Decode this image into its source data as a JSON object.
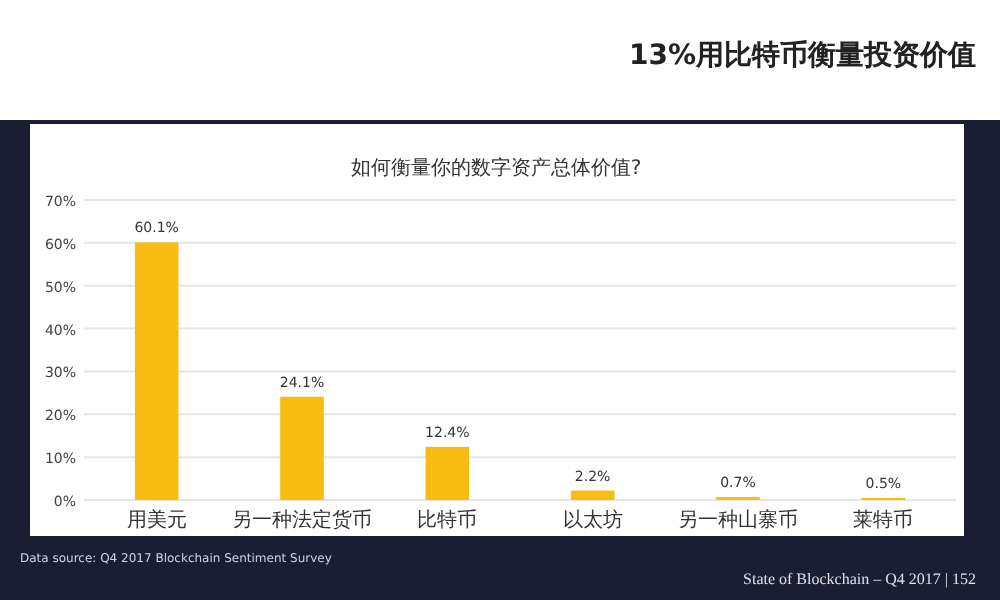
{
  "chart_data": {
    "type": "bar",
    "title": "13%用比特币衡量投资价值",
    "subtitle": "如何衡量你的数字资产总体价值?",
    "categories": [
      "用美元",
      "另一种法定货币",
      "比特币",
      "以太坊",
      "另一种山寨币",
      "莱特币"
    ],
    "values": [
      60.1,
      24.1,
      12.4,
      2.2,
      0.7,
      0.5
    ],
    "value_labels": [
      "60.1%",
      "24.1%",
      "12.4%",
      "2.2%",
      "0.7%",
      "0.5%"
    ],
    "color": "#f9bd12",
    "ylim": [
      0,
      70
    ],
    "yticks": [
      {
        "value": 0,
        "label": "0%"
      },
      {
        "value": 10,
        "label": "10%"
      },
      {
        "value": 20,
        "label": "20%"
      },
      {
        "value": 30,
        "label": "30%"
      },
      {
        "value": 40,
        "label": "40%"
      },
      {
        "value": 50,
        "label": "50%"
      },
      {
        "value": 60,
        "label": "60%"
      },
      {
        "value": 70,
        "label": "70%"
      }
    ],
    "grid": "y",
    "annotations": [
      "Data source: Q4 2017 Blockchain Sentiment Survey",
      "State of Blockchain – Q4 2017  |  152"
    ]
  }
}
